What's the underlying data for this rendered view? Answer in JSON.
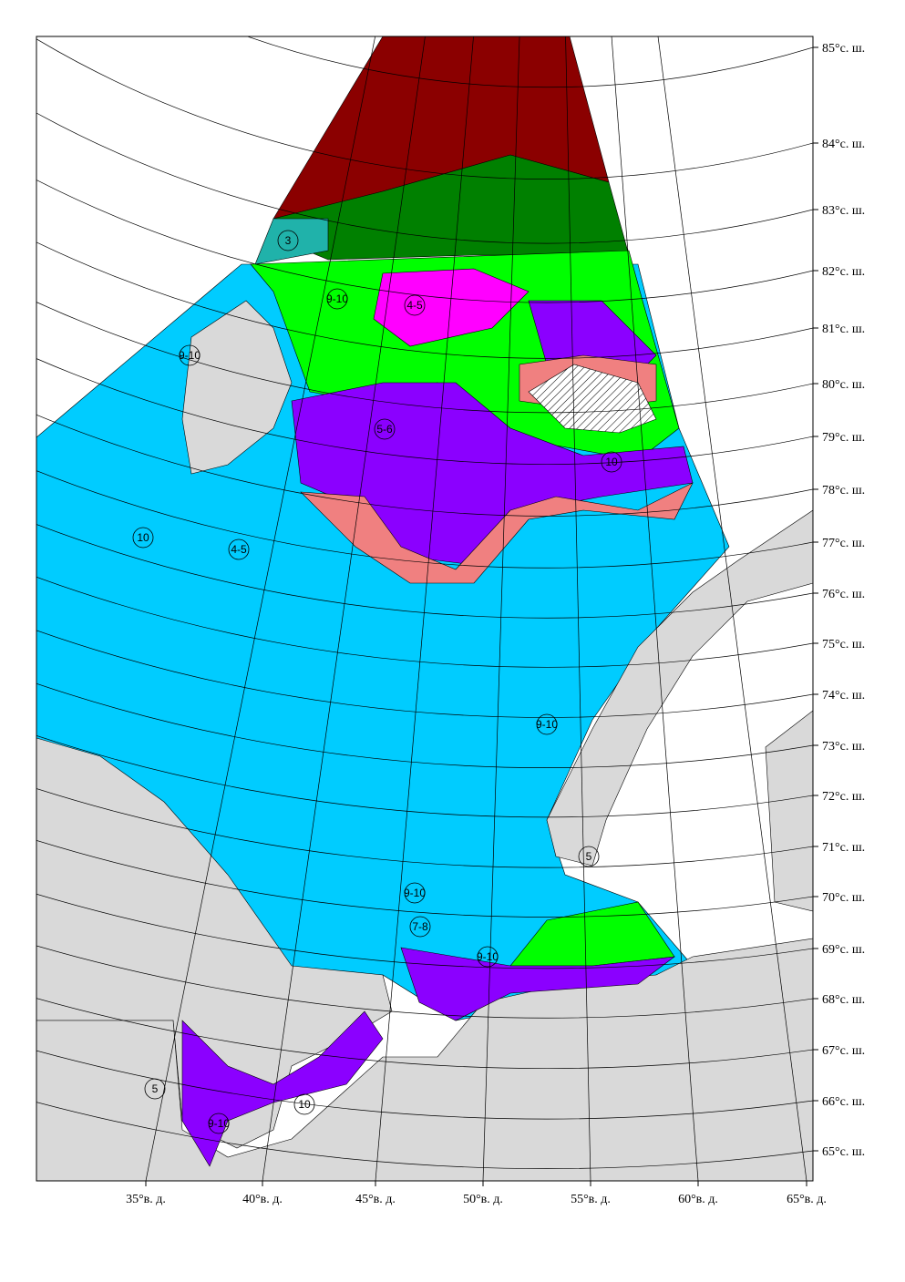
{
  "map": {
    "lat_labels": [
      "85°с. ш.",
      "84°с. ш.",
      "83°с. ш.",
      "82°с. ш.",
      "81°с. ш.",
      "80°с. ш.",
      "79°с. ш.",
      "78°с. ш.",
      "77°с. ш.",
      "76°с. ш.",
      "75°с. ш.",
      "74°с. ш.",
      "73°с. ш.",
      "72°с. ш.",
      "71°с. ш.",
      "70°с. ш.",
      "69°с. ш.",
      "68°с. ш.",
      "67°с. ш.",
      "66°с. ш.",
      "65°с. ш."
    ],
    "lon_labels": [
      "35°в. д.",
      "40°в. д.",
      "45°в. д.",
      "50°в. д.",
      "55°в. д.",
      "60°в. д.",
      "65°в. д."
    ],
    "zone_labels": [
      "3",
      "10",
      "10",
      "4-5",
      "4-5",
      "5-6",
      "9-10",
      "9-10",
      "9-10",
      "9-10",
      "7-8",
      "5",
      "5",
      "10",
      "9-10",
      "9-10"
    ]
  }
}
